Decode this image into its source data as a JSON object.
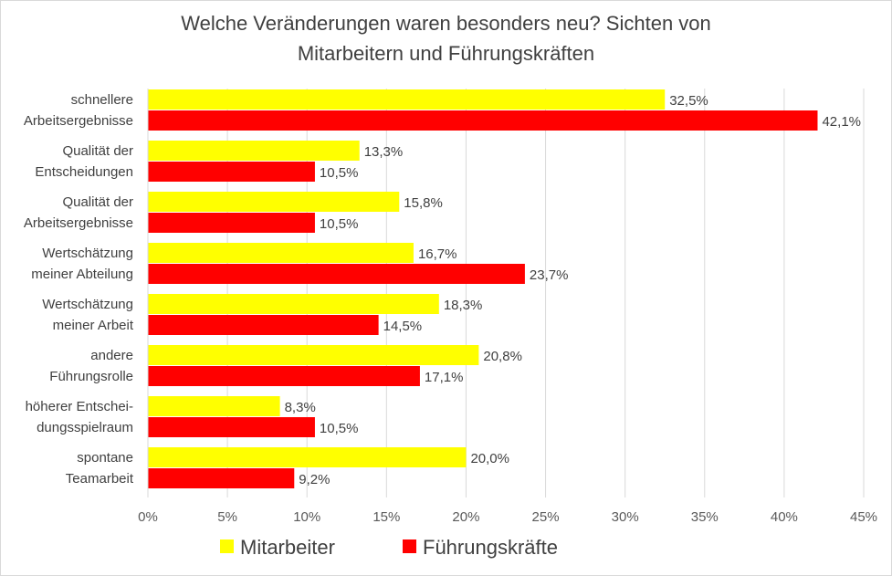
{
  "chart_data": {
    "type": "bar",
    "orientation": "horizontal",
    "title_lines": [
      "Welche Veränderungen waren besonders neu? Sichten von",
      "Mitarbeitern und Führungskräften"
    ],
    "categories": [
      [
        "schnellere",
        "Arbeitsergebnisse"
      ],
      [
        "Qualität der",
        "Entscheidungen"
      ],
      [
        "Qualität der",
        "Arbeitsergebnisse"
      ],
      [
        "Wertschätzung",
        "meiner Abteilung"
      ],
      [
        "Wertschätzung",
        "meiner Arbeit"
      ],
      [
        "andere",
        "Führungsrolle"
      ],
      [
        "höherer Entschei-",
        "dungsspielraum"
      ],
      [
        "spontane",
        "Teamarbeit"
      ]
    ],
    "series": [
      {
        "name": "Mitarbeiter",
        "color": "#ffff00",
        "values": [
          32.5,
          13.3,
          15.8,
          16.7,
          18.3,
          20.8,
          8.3,
          20.0
        ],
        "labels": [
          "32,5%",
          "13,3%",
          "15,8%",
          "16,7%",
          "18,3%",
          "20,8%",
          "8,3%",
          "20,0%"
        ]
      },
      {
        "name": "Führungskräfte",
        "color": "#ff0000",
        "values": [
          42.1,
          10.5,
          10.5,
          23.7,
          14.5,
          17.1,
          10.5,
          9.2
        ],
        "labels": [
          "42,1%",
          "10,5%",
          "10,5%",
          "23,7%",
          "14,5%",
          "17,1%",
          "10,5%",
          "9,2%"
        ]
      }
    ],
    "xlim": [
      0,
      45
    ],
    "xticks": [
      0,
      5,
      10,
      15,
      20,
      25,
      30,
      35,
      40,
      45
    ],
    "xtick_labels": [
      "0%",
      "5%",
      "10%",
      "15%",
      "20%",
      "25%",
      "30%",
      "35%",
      "40%",
      "45%"
    ],
    "grid": true,
    "legend_position": "bottom"
  }
}
